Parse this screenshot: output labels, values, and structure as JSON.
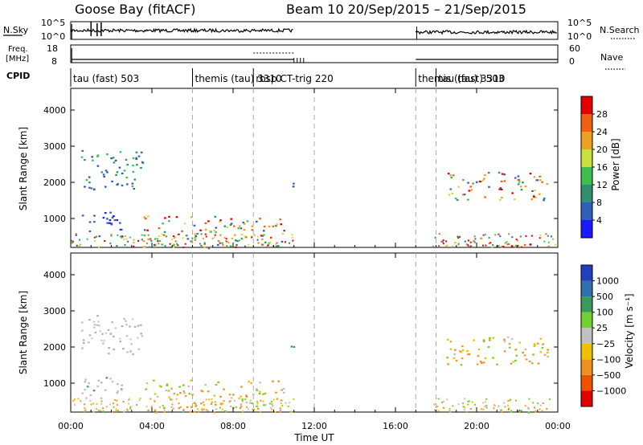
{
  "header": {
    "station": "Goose Bay (fitACF)",
    "beam_info": "Beam 10  20/Sep/2015 – 21/Sep/2015"
  },
  "left_labels": {
    "nsky": "N.Sky",
    "freq_line1": "Freq.",
    "freq_line2": "[MHz]",
    "cpid": "CPID"
  },
  "right_labels": {
    "nsearch": "N.Search",
    "nave": "Nave"
  },
  "noise_panel": {
    "left_ticks": [
      "10^5",
      "10^0"
    ],
    "right_ticks": [
      "10^5",
      "10^0"
    ]
  },
  "freq_panel": {
    "left_ticks": [
      "18",
      "8"
    ],
    "right_ticks": [
      "60",
      "0"
    ]
  },
  "cpid_segments": [
    {
      "label": "tau (fast) 503",
      "start_h": 0.0
    },
    {
      "label": "themis (tau) 3310",
      "start_h": 6.0
    },
    {
      "label": "rbsp CT-trig 220",
      "start_h": 9.0
    },
    {
      "label": "themis (tau) 3310",
      "start_h": 17.0
    },
    {
      "label": "tau (fast) 503",
      "start_h": 18.0
    }
  ],
  "chart_data": [
    {
      "type": "heatmap",
      "name": "power",
      "ylabel": "Slant Range [km]",
      "yticks": [
        "1000",
        "2000",
        "3000",
        "4000"
      ],
      "ylim": [
        200,
        4600
      ],
      "xlim_hours": [
        0,
        24
      ],
      "colorbar_label": "Power [dB]",
      "colorbar_ticks": [
        "4",
        "8",
        "12",
        "16",
        "20",
        "24",
        "28"
      ],
      "colorbar_colors": [
        "#1a1aff",
        "#2f5fb8",
        "#2f8f6f",
        "#3fbf4f",
        "#c8e040",
        "#f0a020",
        "#f06010",
        "#e00000"
      ],
      "echo_regions": [
        {
          "x0": 0.5,
          "x1": 3.6,
          "y0": 1800,
          "y1": 2900,
          "kind": "blue-green"
        },
        {
          "x0": 0.5,
          "x1": 2.5,
          "y0": 500,
          "y1": 1200,
          "kind": "blue"
        },
        {
          "x0": 3.5,
          "x1": 10.5,
          "y0": 200,
          "y1": 1100,
          "kind": "mixed"
        },
        {
          "x0": 10.5,
          "x1": 11.0,
          "y0": 1900,
          "y1": 2100,
          "kind": "blue"
        },
        {
          "x0": 18.5,
          "x1": 23.5,
          "y0": 1500,
          "y1": 2300,
          "kind": "mixed"
        },
        {
          "x0": 21.0,
          "x1": 23.0,
          "y0": 200,
          "y1": 400,
          "kind": "red"
        }
      ]
    },
    {
      "type": "heatmap",
      "name": "velocity",
      "ylabel": "Slant Range [km]",
      "yticks": [
        "1000",
        "2000",
        "3000",
        "4000"
      ],
      "ylim": [
        200,
        4600
      ],
      "xlim_hours": [
        0,
        24
      ],
      "xlabel": "Time UT",
      "xticks": [
        "00:00",
        "04:00",
        "08:00",
        "12:00",
        "16:00",
        "20:00",
        "00:00"
      ],
      "colorbar_label": "Velocity [m s⁻¹]",
      "colorbar_ticks": [
        "1000",
        "500",
        "100",
        "25",
        "−25",
        "−100",
        "−500",
        "−1000"
      ],
      "colorbar_colors": [
        "#2040c0",
        "#3070b0",
        "#3a9a5a",
        "#70d030",
        "#c0c0c0",
        "#f0c000",
        "#f09020",
        "#f05000",
        "#e00000"
      ]
    }
  ]
}
